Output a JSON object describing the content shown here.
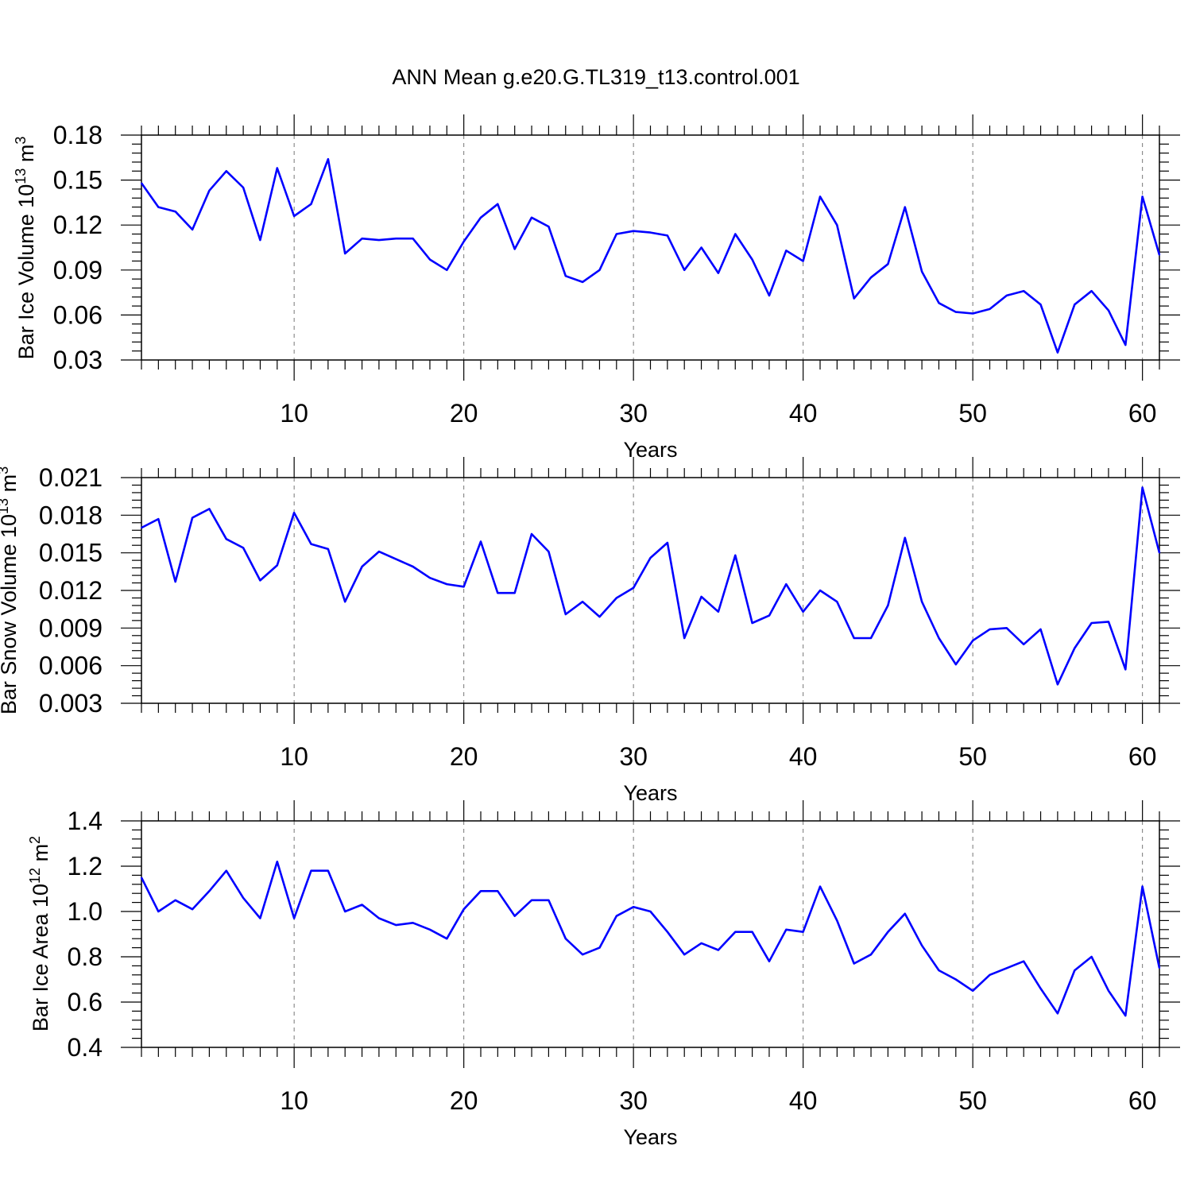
{
  "figure_title": "ANN Mean g.e20.G.TL319_t13.control.001",
  "colors": {
    "line": "#0000ff",
    "frame": "#000000",
    "grid": "#777777"
  },
  "chart_data": [
    {
      "type": "line",
      "id": "ice-volume",
      "ylabel_main": "Bar Ice Volume 10",
      "ylabel_sup": "13",
      "ylabel_unit": " m",
      "ylabel_unit_sup": "3",
      "xlabel": "Years",
      "xlim": [
        1,
        61
      ],
      "ylim": [
        0.03,
        0.18
      ],
      "xticks": [
        10,
        20,
        30,
        40,
        50,
        60
      ],
      "xtick_labels": [
        "10",
        "20",
        "30",
        "40",
        "50",
        "60"
      ],
      "yticks": [
        0.03,
        0.06,
        0.09,
        0.12,
        0.15,
        0.18
      ],
      "ytick_labels": [
        "0.03",
        "0.06",
        "0.09",
        "0.12",
        "0.15",
        "0.18"
      ],
      "grid": "vertical-dashed",
      "series": [
        {
          "name": "Bar Ice Volume",
          "x": [
            1,
            2,
            3,
            4,
            5,
            6,
            7,
            8,
            9,
            10,
            11,
            12,
            13,
            14,
            15,
            16,
            17,
            18,
            19,
            20,
            21,
            22,
            23,
            24,
            25,
            26,
            27,
            28,
            29,
            30,
            31,
            32,
            33,
            34,
            35,
            36,
            37,
            38,
            39,
            40,
            41,
            42,
            43,
            44,
            45,
            46,
            47,
            48,
            49,
            50,
            51,
            52,
            53,
            54,
            55,
            56,
            57,
            58,
            59,
            60,
            61
          ],
          "values": [
            0.148,
            0.132,
            0.129,
            0.117,
            0.143,
            0.156,
            0.145,
            0.11,
            0.158,
            0.126,
            0.134,
            0.164,
            0.101,
            0.111,
            0.11,
            0.111,
            0.111,
            0.097,
            0.09,
            0.109,
            0.125,
            0.134,
            0.104,
            0.125,
            0.119,
            0.086,
            0.082,
            0.09,
            0.114,
            0.116,
            0.115,
            0.113,
            0.09,
            0.105,
            0.088,
            0.114,
            0.097,
            0.073,
            0.103,
            0.096,
            0.139,
            0.12,
            0.071,
            0.085,
            0.094,
            0.132,
            0.089,
            0.068,
            0.062,
            0.061,
            0.064,
            0.073,
            0.076,
            0.067,
            0.035,
            0.067,
            0.076,
            0.063,
            0.04,
            0.139,
            0.1
          ]
        }
      ]
    },
    {
      "type": "line",
      "id": "snow-volume",
      "ylabel_main": "Bar Snow Volume 10",
      "ylabel_sup": "13",
      "ylabel_unit": " m",
      "ylabel_unit_sup": "3",
      "xlabel": "Years",
      "xlim": [
        1,
        61
      ],
      "ylim": [
        0.003,
        0.021
      ],
      "xticks": [
        10,
        20,
        30,
        40,
        50,
        60
      ],
      "xtick_labels": [
        "10",
        "20",
        "30",
        "40",
        "50",
        "60"
      ],
      "yticks": [
        0.003,
        0.006,
        0.009,
        0.012,
        0.015,
        0.018,
        0.021
      ],
      "ytick_labels": [
        "0.003",
        "0.006",
        "0.009",
        "0.012",
        "0.015",
        "0.018",
        "0.021"
      ],
      "grid": "vertical-dashed",
      "series": [
        {
          "name": "Bar Snow Volume",
          "x": [
            1,
            2,
            3,
            4,
            5,
            6,
            7,
            8,
            9,
            10,
            11,
            12,
            13,
            14,
            15,
            16,
            17,
            18,
            19,
            20,
            21,
            22,
            23,
            24,
            25,
            26,
            27,
            28,
            29,
            30,
            31,
            32,
            33,
            34,
            35,
            36,
            37,
            38,
            39,
            40,
            41,
            42,
            43,
            44,
            45,
            46,
            47,
            48,
            49,
            50,
            51,
            52,
            53,
            54,
            55,
            56,
            57,
            58,
            59,
            60,
            61
          ],
          "values": [
            0.017,
            0.0177,
            0.0127,
            0.0178,
            0.0185,
            0.0161,
            0.0154,
            0.0128,
            0.014,
            0.0182,
            0.0157,
            0.0153,
            0.0111,
            0.0139,
            0.0151,
            0.0145,
            0.0139,
            0.013,
            0.0125,
            0.0123,
            0.0159,
            0.0118,
            0.0118,
            0.0165,
            0.0151,
            0.0101,
            0.0111,
            0.0099,
            0.0114,
            0.0122,
            0.0146,
            0.0158,
            0.0082,
            0.0115,
            0.0103,
            0.0148,
            0.0094,
            0.01,
            0.0125,
            0.0103,
            0.012,
            0.0111,
            0.0082,
            0.0082,
            0.0108,
            0.0162,
            0.0111,
            0.0082,
            0.0061,
            0.008,
            0.0089,
            0.009,
            0.0077,
            0.0089,
            0.0045,
            0.0074,
            0.0094,
            0.0095,
            0.0057,
            0.0202,
            0.015
          ]
        }
      ]
    },
    {
      "type": "line",
      "id": "ice-area",
      "ylabel_main": "Bar Ice Area 10",
      "ylabel_sup": "12",
      "ylabel_unit": " m",
      "ylabel_unit_sup": "2",
      "xlabel": "Years",
      "xlim": [
        1,
        61
      ],
      "ylim": [
        0.4,
        1.4
      ],
      "xticks": [
        10,
        20,
        30,
        40,
        50,
        60
      ],
      "xtick_labels": [
        "10",
        "20",
        "30",
        "40",
        "50",
        "60"
      ],
      "yticks": [
        0.4,
        0.6,
        0.8,
        1.0,
        1.2,
        1.4
      ],
      "ytick_labels": [
        "0.4",
        "0.6",
        "0.8",
        "1.0",
        "1.2",
        "1.4"
      ],
      "grid": "vertical-dashed",
      "series": [
        {
          "name": "Bar Ice Area",
          "x": [
            1,
            2,
            3,
            4,
            5,
            6,
            7,
            8,
            9,
            10,
            11,
            12,
            13,
            14,
            15,
            16,
            17,
            18,
            19,
            20,
            21,
            22,
            23,
            24,
            25,
            26,
            27,
            28,
            29,
            30,
            31,
            32,
            33,
            34,
            35,
            36,
            37,
            38,
            39,
            40,
            41,
            42,
            43,
            44,
            45,
            46,
            47,
            48,
            49,
            50,
            51,
            52,
            53,
            54,
            55,
            56,
            57,
            58,
            59,
            60,
            61
          ],
          "values": [
            1.15,
            1.0,
            1.05,
            1.01,
            1.09,
            1.18,
            1.06,
            0.97,
            1.22,
            0.97,
            1.18,
            1.18,
            1.0,
            1.03,
            0.97,
            0.94,
            0.95,
            0.92,
            0.88,
            1.01,
            1.09,
            1.09,
            0.98,
            1.05,
            1.05,
            0.88,
            0.81,
            0.84,
            0.98,
            1.02,
            1.0,
            0.91,
            0.81,
            0.86,
            0.83,
            0.91,
            0.91,
            0.78,
            0.92,
            0.91,
            1.11,
            0.96,
            0.77,
            0.81,
            0.91,
            0.99,
            0.85,
            0.74,
            0.7,
            0.65,
            0.72,
            0.75,
            0.78,
            0.66,
            0.55,
            0.74,
            0.8,
            0.65,
            0.54,
            1.11,
            0.75
          ]
        }
      ]
    }
  ]
}
